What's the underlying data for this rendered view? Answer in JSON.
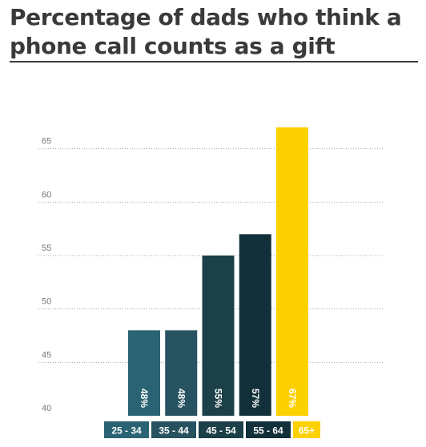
{
  "title": "Percentage of dads who think a phone call counts as a gift",
  "chart_data": {
    "type": "bar",
    "title": "Percentage of dads who think a phone call counts as a gift",
    "categories": [
      "25 - 34",
      "35 - 44",
      "45 - 54",
      "55 - 64",
      "65+"
    ],
    "values": [
      48,
      48,
      55,
      57,
      67
    ],
    "data_labels": [
      "48%",
      "48%",
      "55%",
      "57%",
      "67%"
    ],
    "colors": [
      "#2a6373",
      "#26535f",
      "#1b4048",
      "#12303a",
      "#fdd000"
    ],
    "label_color": "#ffffff",
    "ylim": [
      40,
      67
    ],
    "yticks": [
      40,
      45,
      50,
      55,
      60,
      65
    ],
    "grid": true,
    "xlabel": "",
    "ylabel": ""
  }
}
